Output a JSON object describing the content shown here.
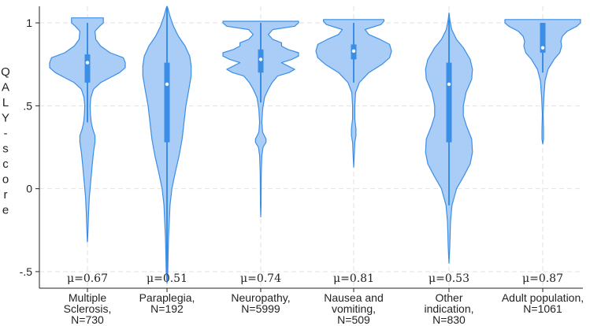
{
  "colors": {
    "violin_fill": "#a9cdf7",
    "violin_stroke": "#3a8ee6",
    "box_fill": "#3a8ee6",
    "median_dot": "#ffffff",
    "grid": "#e2e2e2",
    "axis": "#222222"
  },
  "chart_data": {
    "type": "violin",
    "title": "",
    "xlabel": "",
    "ylabel": "QALY-score",
    "ylim": [
      -0.6,
      1.1
    ],
    "y_ticks": [
      {
        "value": 1,
        "label": "1"
      },
      {
        "value": 0.5,
        "label": ".5"
      },
      {
        "value": 0,
        "label": "0"
      },
      {
        "value": -0.5,
        "label": "-.5"
      }
    ],
    "groups": [
      {
        "label_lines": [
          "Multiple",
          "Sclerosis,",
          "N=730"
        ],
        "mean_label": "μ=0.67",
        "mean": 0.67,
        "n": 730,
        "median": 0.76,
        "q1": 0.64,
        "q3": 0.81,
        "whisker_low": 0.4,
        "whisker_high": 1.0,
        "density": [
          [
            -0.32,
            0.002
          ],
          [
            -0.25,
            0.015
          ],
          [
            -0.15,
            0.03
          ],
          [
            -0.05,
            0.05
          ],
          [
            0.05,
            0.09
          ],
          [
            0.15,
            0.13
          ],
          [
            0.22,
            0.16
          ],
          [
            0.28,
            0.2
          ],
          [
            0.32,
            0.2
          ],
          [
            0.36,
            0.14
          ],
          [
            0.4,
            0.1
          ],
          [
            0.45,
            0.08
          ],
          [
            0.5,
            0.07
          ],
          [
            0.55,
            0.09
          ],
          [
            0.6,
            0.16
          ],
          [
            0.64,
            0.35
          ],
          [
            0.67,
            0.6
          ],
          [
            0.7,
            0.85
          ],
          [
            0.73,
            1.0
          ],
          [
            0.76,
            1.0
          ],
          [
            0.79,
            0.95
          ],
          [
            0.82,
            0.6
          ],
          [
            0.86,
            0.35
          ],
          [
            0.9,
            0.22
          ],
          [
            0.95,
            0.2
          ],
          [
            0.98,
            0.32
          ],
          [
            1.0,
            0.42
          ],
          [
            1.03,
            0.42
          ]
        ]
      },
      {
        "label_lines": [
          "Paraplegia,",
          "N=192"
        ],
        "mean_label": "μ=0.51",
        "mean": 0.51,
        "n": 192,
        "median": 0.63,
        "q1": 0.28,
        "q3": 0.76,
        "whisker_low": -0.55,
        "whisker_high": 1.1,
        "density": [
          [
            -0.57,
            0.0
          ],
          [
            -0.5,
            0.02
          ],
          [
            -0.4,
            0.03
          ],
          [
            -0.3,
            0.04
          ],
          [
            -0.2,
            0.06
          ],
          [
            -0.1,
            0.08
          ],
          [
            0.0,
            0.13
          ],
          [
            0.1,
            0.22
          ],
          [
            0.2,
            0.32
          ],
          [
            0.3,
            0.4
          ],
          [
            0.4,
            0.45
          ],
          [
            0.5,
            0.5
          ],
          [
            0.6,
            0.58
          ],
          [
            0.68,
            0.64
          ],
          [
            0.74,
            0.64
          ],
          [
            0.8,
            0.6
          ],
          [
            0.86,
            0.48
          ],
          [
            0.92,
            0.3
          ],
          [
            0.98,
            0.17
          ],
          [
            1.04,
            0.08
          ],
          [
            1.09,
            0.02
          ],
          [
            1.1,
            0.0
          ]
        ]
      },
      {
        "label_lines": [
          "Neuropathy,",
          "N=5999"
        ],
        "mean_label": "μ=0.74",
        "mean": 0.74,
        "n": 5999,
        "median": 0.78,
        "q1": 0.7,
        "q3": 0.84,
        "whisker_low": 0.52,
        "whisker_high": 1.0,
        "density": [
          [
            -0.17,
            0.0
          ],
          [
            -0.1,
            0.008
          ],
          [
            0.0,
            0.01
          ],
          [
            0.1,
            0.015
          ],
          [
            0.2,
            0.03
          ],
          [
            0.25,
            0.06
          ],
          [
            0.28,
            0.14
          ],
          [
            0.3,
            0.14
          ],
          [
            0.34,
            0.05
          ],
          [
            0.4,
            0.03
          ],
          [
            0.48,
            0.05
          ],
          [
            0.55,
            0.1
          ],
          [
            0.6,
            0.2
          ],
          [
            0.64,
            0.3
          ],
          [
            0.68,
            0.45
          ],
          [
            0.7,
            0.75
          ],
          [
            0.72,
            0.9
          ],
          [
            0.74,
            0.72
          ],
          [
            0.76,
            0.55
          ],
          [
            0.78,
            0.82
          ],
          [
            0.8,
            1.0
          ],
          [
            0.82,
            1.0
          ],
          [
            0.84,
            0.72
          ],
          [
            0.86,
            0.55
          ],
          [
            0.88,
            0.55
          ],
          [
            0.9,
            0.32
          ],
          [
            0.93,
            0.2
          ],
          [
            0.96,
            0.32
          ],
          [
            0.98,
            0.9
          ],
          [
            1.0,
            1.0
          ],
          [
            1.01,
            1.0
          ]
        ]
      },
      {
        "label_lines": [
          "Nausea and",
          "vomiting,",
          "N=509"
        ],
        "mean_label": "μ=0.81",
        "mean": 0.81,
        "n": 509,
        "median": 0.83,
        "q1": 0.78,
        "q3": 0.87,
        "whisker_low": 0.64,
        "whisker_high": 1.0,
        "density": [
          [
            0.13,
            0.0
          ],
          [
            0.2,
            0.015
          ],
          [
            0.28,
            0.03
          ],
          [
            0.32,
            0.06
          ],
          [
            0.36,
            0.06
          ],
          [
            0.42,
            0.03
          ],
          [
            0.5,
            0.03
          ],
          [
            0.58,
            0.05
          ],
          [
            0.64,
            0.15
          ],
          [
            0.7,
            0.4
          ],
          [
            0.75,
            0.75
          ],
          [
            0.79,
            0.95
          ],
          [
            0.83,
            1.0
          ],
          [
            0.87,
            0.95
          ],
          [
            0.9,
            0.7
          ],
          [
            0.93,
            0.4
          ],
          [
            0.96,
            0.3
          ],
          [
            0.99,
            0.72
          ],
          [
            1.01,
            0.8
          ],
          [
            1.02,
            0.8
          ]
        ]
      },
      {
        "label_lines": [
          "Other",
          "indication,",
          "N=830"
        ],
        "mean_label": "μ=0.53",
        "mean": 0.53,
        "n": 830,
        "median": 0.63,
        "q1": 0.28,
        "q3": 0.76,
        "whisker_low": -0.1,
        "whisker_high": 1.05,
        "density": [
          [
            -0.45,
            0.0
          ],
          [
            -0.35,
            0.02
          ],
          [
            -0.2,
            0.04
          ],
          [
            -0.1,
            0.08
          ],
          [
            0.0,
            0.2
          ],
          [
            0.08,
            0.4
          ],
          [
            0.15,
            0.56
          ],
          [
            0.22,
            0.62
          ],
          [
            0.3,
            0.6
          ],
          [
            0.38,
            0.46
          ],
          [
            0.44,
            0.38
          ],
          [
            0.5,
            0.38
          ],
          [
            0.58,
            0.45
          ],
          [
            0.66,
            0.6
          ],
          [
            0.72,
            0.62
          ],
          [
            0.78,
            0.56
          ],
          [
            0.85,
            0.38
          ],
          [
            0.9,
            0.2
          ],
          [
            0.96,
            0.07
          ],
          [
            1.02,
            0.02
          ],
          [
            1.06,
            0.0
          ]
        ]
      },
      {
        "label_lines": [
          "Adult population,",
          "N=1061"
        ],
        "mean_label": "μ=0.87",
        "mean": 0.87,
        "n": 1061,
        "median": 0.85,
        "q1": 0.82,
        "q3": 1.0,
        "whisker_low": 0.7,
        "whisker_high": 1.0,
        "density": [
          [
            0.27,
            0.0
          ],
          [
            0.3,
            0.02
          ],
          [
            0.35,
            0.02
          ],
          [
            0.45,
            0.01
          ],
          [
            0.55,
            0.03
          ],
          [
            0.65,
            0.06
          ],
          [
            0.72,
            0.14
          ],
          [
            0.78,
            0.3
          ],
          [
            0.82,
            0.45
          ],
          [
            0.86,
            0.5
          ],
          [
            0.89,
            0.48
          ],
          [
            0.92,
            0.52
          ],
          [
            0.95,
            0.65
          ],
          [
            0.98,
            0.9
          ],
          [
            1.0,
            1.0
          ],
          [
            1.02,
            1.0
          ]
        ]
      }
    ]
  }
}
